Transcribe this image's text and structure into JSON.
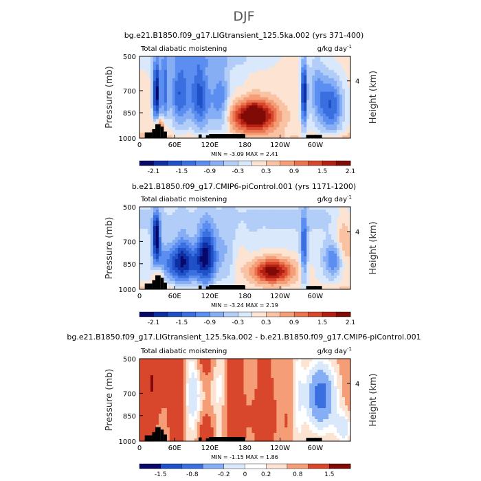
{
  "page_title": "DJF",
  "chart_data": [
    {
      "type": "heatmap",
      "title": "bg.e21.B1850.f09_g17.LIGtransient_125.5ka.002 (yrs 371-400)",
      "subtitle_left": "Total diabatic moistening",
      "subtitle_right": "g/kg day",
      "subtitle_right_exp": "-1",
      "ylabel": "Pressure (mb)",
      "ylabel_right": "Height (km)",
      "x_ticks": [
        "0",
        "60E",
        "120E",
        "180",
        "120W",
        "60W"
      ],
      "y_ticks": [
        "500",
        "700",
        "850",
        "1000"
      ],
      "right_ticks": [
        "4"
      ],
      "stats": "MIN =  -3.09   MAX =   2.41",
      "colorbar_ticks": [
        "-2.1",
        "-1.5",
        "-0.9",
        "-0.3",
        "0.3",
        "0.9",
        "1.5",
        "2.1"
      ],
      "colors": [
        "#08086b",
        "#0d2fa3",
        "#1f50c8",
        "#3a6fe0",
        "#5b8ef0",
        "#86aef5",
        "#b2cdf8",
        "#d9e8fb",
        "#fde4d2",
        "#f9c3a3",
        "#f49d76",
        "#ea7450",
        "#d8462c",
        "#b31f12",
        "#7f0a06"
      ]
    },
    {
      "type": "heatmap",
      "title": "b.e21.B1850.f09_g17.CMIP6-piControl.001 (yrs 1171-1200)",
      "subtitle_left": "Total diabatic moistening",
      "subtitle_right": "g/kg day",
      "subtitle_right_exp": "-1",
      "ylabel": "Pressure (mb)",
      "ylabel_right": "Height (km)",
      "x_ticks": [
        "0",
        "60E",
        "120E",
        "180",
        "120W",
        "60W"
      ],
      "y_ticks": [
        "500",
        "700",
        "850",
        "1000"
      ],
      "right_ticks": [
        "4"
      ],
      "stats": "MIN =  -3.24   MAX =   2.19",
      "colorbar_ticks": [
        "-2.1",
        "-1.5",
        "-0.9",
        "-0.3",
        "0.3",
        "0.9",
        "1.5",
        "2.1"
      ],
      "colors": [
        "#08086b",
        "#0d2fa3",
        "#1f50c8",
        "#3a6fe0",
        "#5b8ef0",
        "#86aef5",
        "#b2cdf8",
        "#d9e8fb",
        "#fde4d2",
        "#f9c3a3",
        "#f49d76",
        "#ea7450",
        "#d8462c",
        "#b31f12",
        "#7f0a06"
      ]
    },
    {
      "type": "heatmap",
      "title": "bg.e21.B1850.f09_g17.LIGtransient_125.5ka.002 - b.e21.B1850.f09_g17.CMIP6-piControl.001",
      "subtitle_left": "Total diabatic moistening",
      "subtitle_right": "g/kg day",
      "subtitle_right_exp": "-1",
      "ylabel": "Pressure (mb)",
      "ylabel_right": "Height (km)",
      "x_ticks": [
        "0",
        "60E",
        "120E",
        "180",
        "120W",
        "60W"
      ],
      "y_ticks": [
        "500",
        "700",
        "850",
        "1000"
      ],
      "right_ticks": [
        "4"
      ],
      "stats": "MIN =  -1.15   MAX =   1.86",
      "colorbar_ticks": [
        "-1.5",
        "-0.8",
        "-0.2",
        "0",
        "0.2",
        "0.8",
        "1.5"
      ],
      "colors": [
        "#08086b",
        "#1f50c8",
        "#3a6fe0",
        "#86aef5",
        "#d9e8fb",
        "#ffffff",
        "#fde4d2",
        "#f49d76",
        "#d8462c",
        "#7f0a06"
      ]
    }
  ]
}
